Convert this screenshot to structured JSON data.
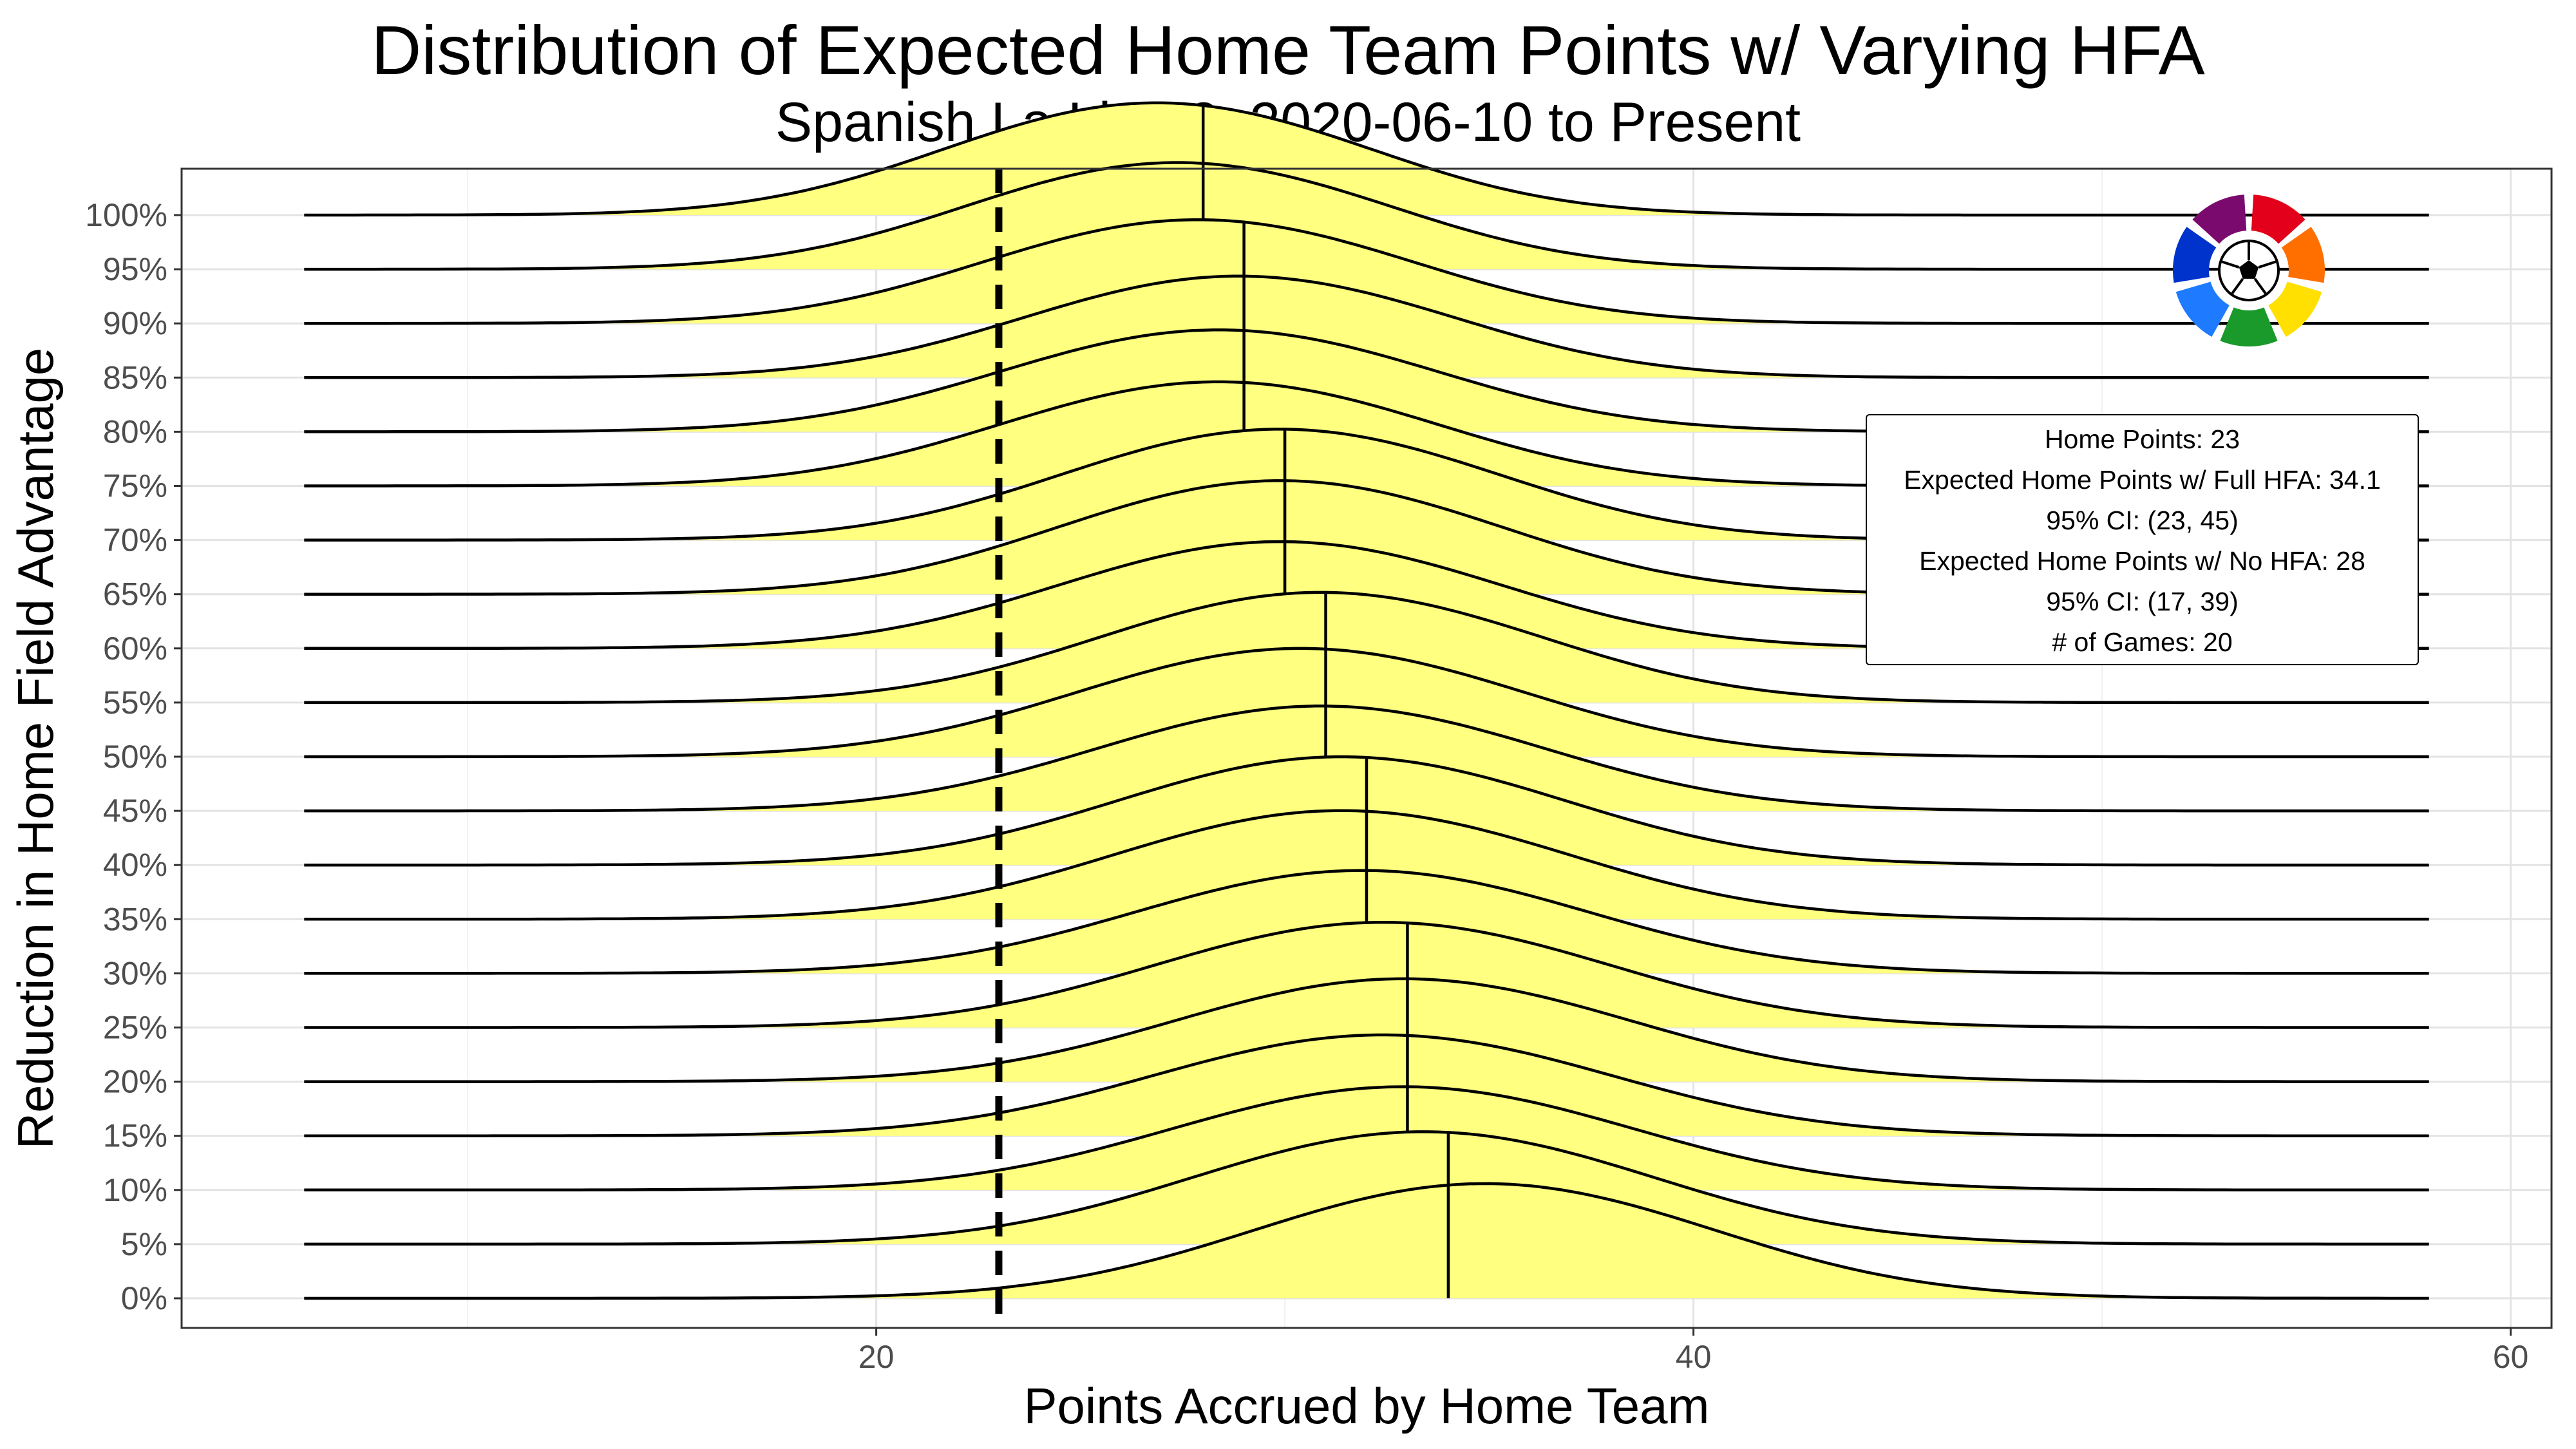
{
  "chart_data": {
    "type": "ridgeline",
    "title": "Distribution of Expected Home Team Points w/ Varying HFA",
    "subtitle": "Spanish La Liga 2: 2020-06-10 to Present",
    "xlabel": "Points Accrued by Home Team",
    "ylabel": "Reduction in Home Field Advantage",
    "xlim": [
      3,
      61
    ],
    "x_ticks": [
      20,
      40,
      60
    ],
    "density_x_range": [
      6,
      58
    ],
    "grid": true,
    "fill_color": "#FFFF80",
    "line_color": "#000000",
    "reference_line": {
      "x": 23,
      "style": "dashed"
    },
    "rows": [
      {
        "label": "0%",
        "median": 34,
        "mode": 35,
        "peak": 1.0,
        "spread": 5.6
      },
      {
        "label": "5%",
        "median": 34,
        "mode": 33.5,
        "peak": 0.98,
        "spread": 5.6
      },
      {
        "label": "10%",
        "median": 33,
        "mode": 33,
        "peak": 0.9,
        "spread": 5.6
      },
      {
        "label": "15%",
        "median": 33,
        "mode": 32.5,
        "peak": 0.88,
        "spread": 5.6
      },
      {
        "label": "20%",
        "median": 33,
        "mode": 33,
        "peak": 0.9,
        "spread": 5.5
      },
      {
        "label": "25%",
        "median": 33,
        "mode": 32.5,
        "peak": 0.92,
        "spread": 5.5
      },
      {
        "label": "30%",
        "median": 32,
        "mode": 32,
        "peak": 0.9,
        "spread": 5.5
      },
      {
        "label": "35%",
        "median": 32,
        "mode": 31.5,
        "peak": 0.95,
        "spread": 5.5
      },
      {
        "label": "40%",
        "median": 32,
        "mode": 31.5,
        "peak": 0.95,
        "spread": 5.4
      },
      {
        "label": "45%",
        "median": 31,
        "mode": 31,
        "peak": 0.92,
        "spread": 5.4
      },
      {
        "label": "50%",
        "median": 31,
        "mode": 30.5,
        "peak": 0.95,
        "spread": 5.4
      },
      {
        "label": "55%",
        "median": 31,
        "mode": 31,
        "peak": 0.97,
        "spread": 5.3
      },
      {
        "label": "60%",
        "median": 30,
        "mode": 30,
        "peak": 0.94,
        "spread": 5.3
      },
      {
        "label": "65%",
        "median": 30,
        "mode": 30,
        "peak": 1.0,
        "spread": 5.3
      },
      {
        "label": "70%",
        "median": 30,
        "mode": 30,
        "peak": 0.98,
        "spread": 5.2
      },
      {
        "label": "75%",
        "median": 29,
        "mode": 28.5,
        "peak": 0.92,
        "spread": 5.2
      },
      {
        "label": "80%",
        "median": 29,
        "mode": 28.5,
        "peak": 0.9,
        "spread": 5.2
      },
      {
        "label": "85%",
        "median": 29,
        "mode": 29,
        "peak": 0.9,
        "spread": 5.1
      },
      {
        "label": "90%",
        "median": 29,
        "mode": 28,
        "peak": 0.92,
        "spread": 5.1
      },
      {
        "label": "95%",
        "median": 28,
        "mode": 27.5,
        "peak": 0.95,
        "spread": 5.0
      },
      {
        "label": "100%",
        "median": 28,
        "mode": 27,
        "peak": 1.0,
        "spread": 5.0
      }
    ],
    "legend_box": {
      "lines": [
        "Home Points: 23",
        "Expected Home Points w/ Full HFA: 34.1",
        "95% CI: (23, 45)",
        "Expected Home Points w/ No HFA: 28",
        "95% CI: (17, 39)",
        "# of Games: 20"
      ],
      "placement": "right"
    }
  },
  "logo": {
    "name": "LaLiga",
    "segment_colors": [
      "#E3001B",
      "#FF6F00",
      "#FFE000",
      "#1A9A2A",
      "#1E7BFF",
      "#0033CC",
      "#7A0A6E"
    ]
  }
}
